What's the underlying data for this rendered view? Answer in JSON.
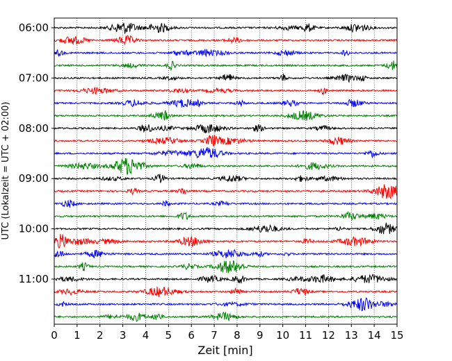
{
  "chart_data": {
    "type": "line",
    "xlabel": "Zeit  [min]",
    "ylabel": "UTC (Lokalzeit = UTC + 02:00)",
    "xlim": [
      0,
      15
    ],
    "x_ticks": [
      "0",
      "1",
      "2",
      "3",
      "4",
      "5",
      "6",
      "7",
      "8",
      "9",
      "10",
      "11",
      "12",
      "13",
      "14",
      "15"
    ],
    "y_tick_labels": [
      "06:00",
      "07:00",
      "08:00",
      "09:00",
      "10:00",
      "11:00"
    ],
    "grid": "vertical dotted",
    "traces": [
      {
        "start": "06:00",
        "color": "#000000"
      },
      {
        "start": "06:15",
        "color": "#ff0000"
      },
      {
        "start": "06:30",
        "color": "#0000ff"
      },
      {
        "start": "06:45",
        "color": "#008000"
      },
      {
        "start": "07:00",
        "color": "#000000"
      },
      {
        "start": "07:15",
        "color": "#ff0000"
      },
      {
        "start": "07:30",
        "color": "#0000ff"
      },
      {
        "start": "07:45",
        "color": "#008000"
      },
      {
        "start": "08:00",
        "color": "#000000"
      },
      {
        "start": "08:15",
        "color": "#ff0000"
      },
      {
        "start": "08:30",
        "color": "#0000ff"
      },
      {
        "start": "08:45",
        "color": "#008000"
      },
      {
        "start": "09:00",
        "color": "#000000"
      },
      {
        "start": "09:15",
        "color": "#ff0000"
      },
      {
        "start": "09:30",
        "color": "#0000ff"
      },
      {
        "start": "09:45",
        "color": "#008000"
      },
      {
        "start": "10:00",
        "color": "#000000"
      },
      {
        "start": "10:15",
        "color": "#ff0000"
      },
      {
        "start": "10:30",
        "color": "#0000ff"
      },
      {
        "start": "10:45",
        "color": "#008000"
      },
      {
        "start": "11:00",
        "color": "#000000"
      },
      {
        "start": "11:15",
        "color": "#ff0000"
      },
      {
        "start": "11:30",
        "color": "#0000ff"
      },
      {
        "start": "11:45",
        "color": "#008000"
      }
    ]
  }
}
